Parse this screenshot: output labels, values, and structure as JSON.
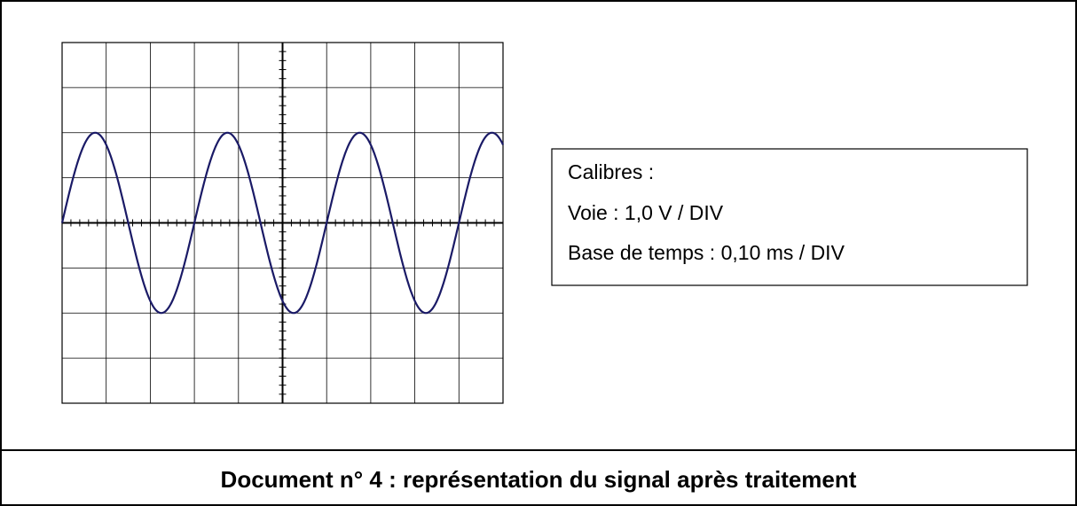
{
  "calibres": {
    "title": "Calibres :",
    "lines": [
      "Voie : 1,0 V / DIV",
      "Base de temps : 0,10 ms / DIV"
    ]
  },
  "caption": "Document n° 4 : représentation du signal après traitement"
}
